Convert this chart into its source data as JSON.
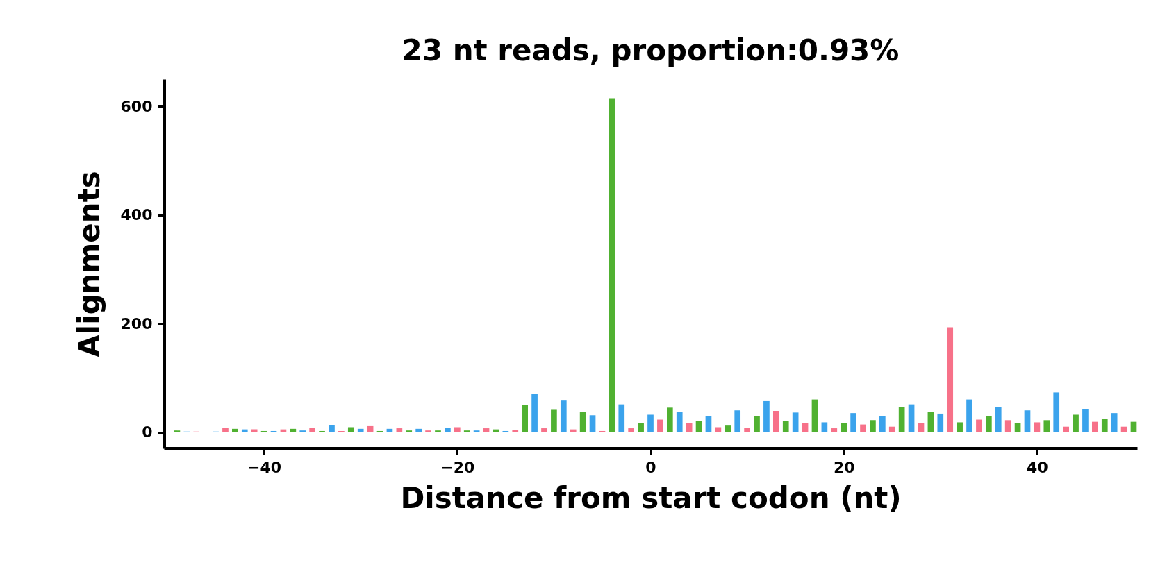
{
  "chart_data": {
    "type": "bar",
    "title": "23 nt reads, proportion:0.93%",
    "xlabel": "Distance from start codon (nt)",
    "ylabel": "Alignments",
    "xlim": [
      -50,
      50
    ],
    "xticks": [
      -40,
      -20,
      0,
      20,
      40
    ],
    "ylim": [
      -30,
      650
    ],
    "yticks": [
      0,
      200,
      400,
      600
    ],
    "series": [
      {
        "color": "#50b131",
        "x": [
          -49,
          -46,
          -43,
          -40,
          -37,
          -34,
          -31,
          -28,
          -25,
          -22,
          -19,
          -16,
          -13,
          -10,
          -7,
          -4,
          -1,
          2,
          5,
          8,
          11,
          14,
          17,
          20,
          23,
          26,
          29,
          32,
          35,
          38,
          41,
          44,
          47,
          50
        ],
        "values": [
          3,
          0,
          6,
          2,
          6,
          2,
          9,
          2,
          3,
          3,
          3,
          5,
          50,
          41,
          37,
          615,
          16,
          45,
          21,
          12,
          30,
          21,
          60,
          17,
          22,
          46,
          37,
          18,
          30,
          17,
          22,
          32,
          25,
          19
        ]
      },
      {
        "color": "#3ba3ec",
        "x": [
          -48,
          -45,
          -42,
          -39,
          -36,
          -33,
          -30,
          -27,
          -24,
          -21,
          -18,
          -15,
          -12,
          -9,
          -6,
          -3,
          0,
          3,
          6,
          9,
          12,
          15,
          18,
          21,
          24,
          27,
          30,
          33,
          36,
          39,
          42,
          45,
          48
        ],
        "values": [
          1,
          1,
          5,
          2,
          3,
          13,
          6,
          6,
          6,
          8,
          3,
          2,
          70,
          58,
          31,
          51,
          32,
          37,
          30,
          40,
          57,
          36,
          18,
          35,
          30,
          51,
          34,
          60,
          46,
          40,
          73,
          42,
          35
        ]
      },
      {
        "color": "#f77189",
        "x": [
          -47,
          -44,
          -41,
          -38,
          -35,
          -32,
          -29,
          -26,
          -23,
          -20,
          -17,
          -14,
          -11,
          -8,
          -5,
          -2,
          1,
          4,
          7,
          10,
          13,
          16,
          19,
          22,
          25,
          28,
          31,
          34,
          37,
          40,
          43,
          46,
          49
        ],
        "values": [
          1,
          8,
          5,
          5,
          8,
          2,
          11,
          7,
          3,
          9,
          7,
          4,
          7,
          5,
          2,
          7,
          23,
          16,
          9,
          8,
          39,
          17,
          7,
          14,
          10,
          17,
          193,
          23,
          22,
          18,
          10,
          19,
          10
        ]
      }
    ]
  }
}
